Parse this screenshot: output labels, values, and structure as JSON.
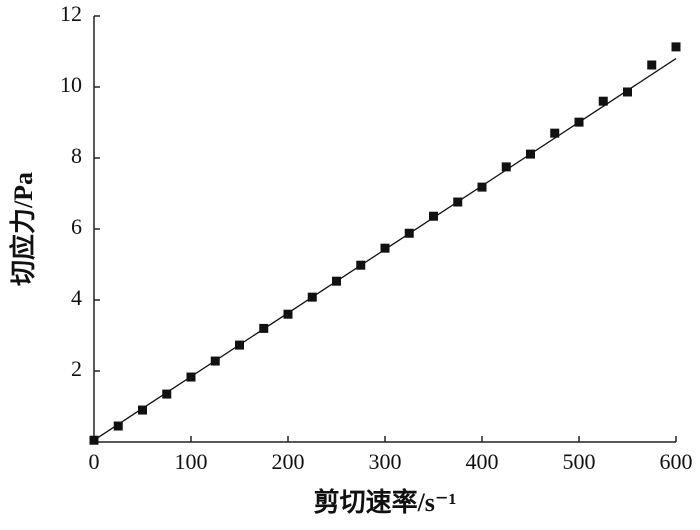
{
  "chart_data": {
    "type": "scatter",
    "x_label": "剪切速率/s⁻¹",
    "y_label": "切应力/Pa",
    "x": [
      0,
      25,
      50,
      75,
      100,
      125,
      150,
      175,
      200,
      225,
      250,
      275,
      300,
      325,
      350,
      375,
      400,
      425,
      450,
      475,
      500,
      525,
      550,
      575,
      600
    ],
    "series": [
      {
        "color": "#111111",
        "values": [
          0.05,
          0.45,
          0.9,
          1.35,
          1.83,
          2.28,
          2.73,
          3.2,
          3.6,
          4.08,
          4.53,
          4.98,
          5.46,
          5.88,
          6.36,
          6.76,
          7.18,
          7.75,
          8.11,
          8.7,
          9.01,
          9.6,
          9.86,
          10.62,
          11.13
        ]
      }
    ],
    "fit_line": {
      "color": "#111111",
      "x": [
        0,
        600
      ],
      "values": [
        0.05,
        10.8
      ]
    },
    "xlim": [
      0,
      600
    ],
    "ylim": [
      0,
      12
    ],
    "xticks": [
      0,
      100,
      200,
      300,
      400,
      500,
      600
    ],
    "yticks": [
      2,
      4,
      6,
      8,
      10,
      12
    ],
    "grid": false
  }
}
